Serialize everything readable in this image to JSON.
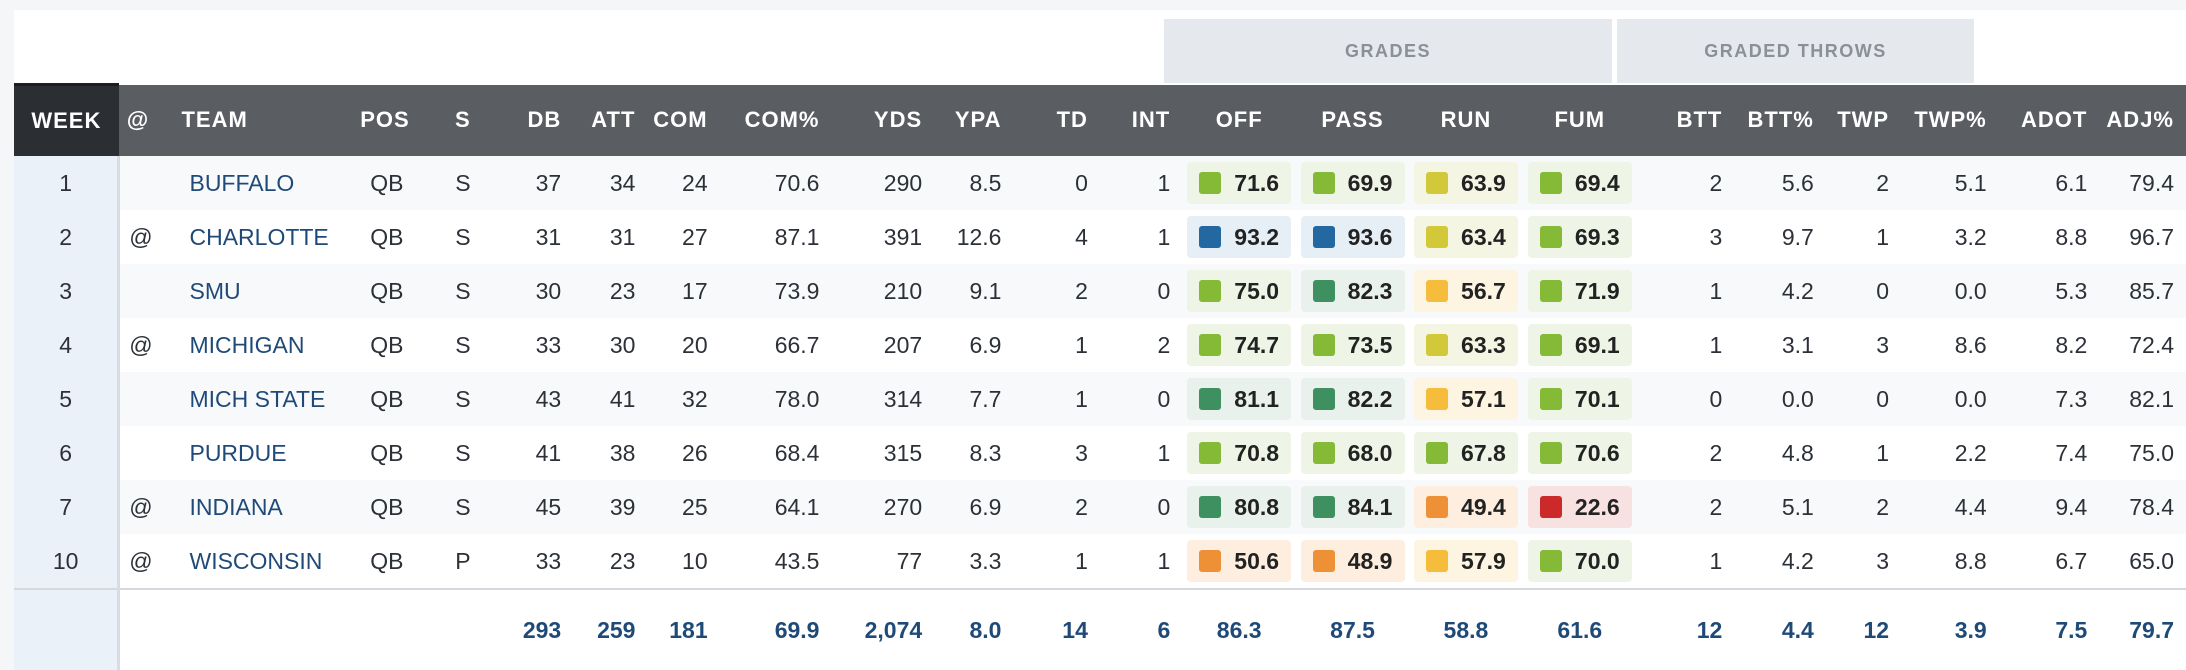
{
  "group_headers": {
    "grades": "GRADES",
    "graded_throws": "GRADED THROWS"
  },
  "columns": {
    "week": "WEEK",
    "at": "@",
    "team": "TEAM",
    "pos": "POS",
    "s": "S",
    "db": "DB",
    "att": "ATT",
    "com": "COM",
    "com_pct": "COM%",
    "yds": "YDS",
    "ypa": "YPA",
    "td": "TD",
    "int": "INT",
    "off": "OFF",
    "pass": "PASS",
    "run": "RUN",
    "fum": "FUM",
    "btt": "BTT",
    "btt_pct": "BTT%",
    "twp": "TWP",
    "twp_pct": "TWP%",
    "adot": "ADOT",
    "adj": "ADJ%"
  },
  "grade_colors": {
    "blue": "#2468a1",
    "dgreen": "#3f9061",
    "green": "#85ba37",
    "lime": "#d1c83a",
    "yellow": "#f6bd3c",
    "orange": "#ee9035",
    "red": "#cc2a2a"
  },
  "rows": [
    {
      "week": "1",
      "at": "",
      "team": "BUFFALO",
      "pos": "QB",
      "s": "S",
      "db": "37",
      "att": "34",
      "com": "24",
      "com_pct": "70.6",
      "yds": "290",
      "ypa": "8.5",
      "td": "0",
      "int": "1",
      "off": {
        "v": "71.6",
        "c": "green"
      },
      "pass": {
        "v": "69.9",
        "c": "green"
      },
      "run": {
        "v": "63.9",
        "c": "lime"
      },
      "fum": {
        "v": "69.4",
        "c": "green"
      },
      "btt": "2",
      "btt_pct": "5.6",
      "twp": "2",
      "twp_pct": "5.1",
      "adot": "6.1",
      "adj": "79.4"
    },
    {
      "week": "2",
      "at": "@",
      "team": "CHARLOTTE",
      "pos": "QB",
      "s": "S",
      "db": "31",
      "att": "31",
      "com": "27",
      "com_pct": "87.1",
      "yds": "391",
      "ypa": "12.6",
      "td": "4",
      "int": "1",
      "off": {
        "v": "93.2",
        "c": "blue"
      },
      "pass": {
        "v": "93.6",
        "c": "blue"
      },
      "run": {
        "v": "63.4",
        "c": "lime"
      },
      "fum": {
        "v": "69.3",
        "c": "green"
      },
      "btt": "3",
      "btt_pct": "9.7",
      "twp": "1",
      "twp_pct": "3.2",
      "adot": "8.8",
      "adj": "96.7"
    },
    {
      "week": "3",
      "at": "",
      "team": "SMU",
      "pos": "QB",
      "s": "S",
      "db": "30",
      "att": "23",
      "com": "17",
      "com_pct": "73.9",
      "yds": "210",
      "ypa": "9.1",
      "td": "2",
      "int": "0",
      "off": {
        "v": "75.0",
        "c": "green"
      },
      "pass": {
        "v": "82.3",
        "c": "dgreen"
      },
      "run": {
        "v": "56.7",
        "c": "yellow"
      },
      "fum": {
        "v": "71.9",
        "c": "green"
      },
      "btt": "1",
      "btt_pct": "4.2",
      "twp": "0",
      "twp_pct": "0.0",
      "adot": "5.3",
      "adj": "85.7"
    },
    {
      "week": "4",
      "at": "@",
      "team": "MICHIGAN",
      "pos": "QB",
      "s": "S",
      "db": "33",
      "att": "30",
      "com": "20",
      "com_pct": "66.7",
      "yds": "207",
      "ypa": "6.9",
      "td": "1",
      "int": "2",
      "off": {
        "v": "74.7",
        "c": "green"
      },
      "pass": {
        "v": "73.5",
        "c": "green"
      },
      "run": {
        "v": "63.3",
        "c": "lime"
      },
      "fum": {
        "v": "69.1",
        "c": "green"
      },
      "btt": "1",
      "btt_pct": "3.1",
      "twp": "3",
      "twp_pct": "8.6",
      "adot": "8.2",
      "adj": "72.4"
    },
    {
      "week": "5",
      "at": "",
      "team": "MICH STATE",
      "pos": "QB",
      "s": "S",
      "db": "43",
      "att": "41",
      "com": "32",
      "com_pct": "78.0",
      "yds": "314",
      "ypa": "7.7",
      "td": "1",
      "int": "0",
      "off": {
        "v": "81.1",
        "c": "dgreen"
      },
      "pass": {
        "v": "82.2",
        "c": "dgreen"
      },
      "run": {
        "v": "57.1",
        "c": "yellow"
      },
      "fum": {
        "v": "70.1",
        "c": "green"
      },
      "btt": "0",
      "btt_pct": "0.0",
      "twp": "0",
      "twp_pct": "0.0",
      "adot": "7.3",
      "adj": "82.1"
    },
    {
      "week": "6",
      "at": "",
      "team": "PURDUE",
      "pos": "QB",
      "s": "S",
      "db": "41",
      "att": "38",
      "com": "26",
      "com_pct": "68.4",
      "yds": "315",
      "ypa": "8.3",
      "td": "3",
      "int": "1",
      "off": {
        "v": "70.8",
        "c": "green"
      },
      "pass": {
        "v": "68.0",
        "c": "green"
      },
      "run": {
        "v": "67.8",
        "c": "green"
      },
      "fum": {
        "v": "70.6",
        "c": "green"
      },
      "btt": "2",
      "btt_pct": "4.8",
      "twp": "1",
      "twp_pct": "2.2",
      "adot": "7.4",
      "adj": "75.0"
    },
    {
      "week": "7",
      "at": "@",
      "team": "INDIANA",
      "pos": "QB",
      "s": "S",
      "db": "45",
      "att": "39",
      "com": "25",
      "com_pct": "64.1",
      "yds": "270",
      "ypa": "6.9",
      "td": "2",
      "int": "0",
      "off": {
        "v": "80.8",
        "c": "dgreen"
      },
      "pass": {
        "v": "84.1",
        "c": "dgreen"
      },
      "run": {
        "v": "49.4",
        "c": "orange"
      },
      "fum": {
        "v": "22.6",
        "c": "red"
      },
      "btt": "2",
      "btt_pct": "5.1",
      "twp": "2",
      "twp_pct": "4.4",
      "adot": "9.4",
      "adj": "78.4"
    },
    {
      "week": "10",
      "at": "@",
      "team": "WISCONSIN",
      "pos": "QB",
      "s": "P",
      "db": "33",
      "att": "23",
      "com": "10",
      "com_pct": "43.5",
      "yds": "77",
      "ypa": "3.3",
      "td": "1",
      "int": "1",
      "off": {
        "v": "50.6",
        "c": "orange"
      },
      "pass": {
        "v": "48.9",
        "c": "orange"
      },
      "run": {
        "v": "57.9",
        "c": "yellow"
      },
      "fum": {
        "v": "70.0",
        "c": "green"
      },
      "btt": "1",
      "btt_pct": "4.2",
      "twp": "3",
      "twp_pct": "8.8",
      "adot": "6.7",
      "adj": "65.0"
    }
  ],
  "totals": {
    "db": "293",
    "att": "259",
    "com": "181",
    "com_pct": "69.9",
    "yds": "2,074",
    "ypa": "8.0",
    "td": "14",
    "int": "6",
    "off": "86.3",
    "pass": "87.5",
    "run": "58.8",
    "fum": "61.6",
    "btt": "12",
    "btt_pct": "4.4",
    "twp": "12",
    "twp_pct": "3.9",
    "adot": "7.5",
    "adj": "79.7"
  }
}
